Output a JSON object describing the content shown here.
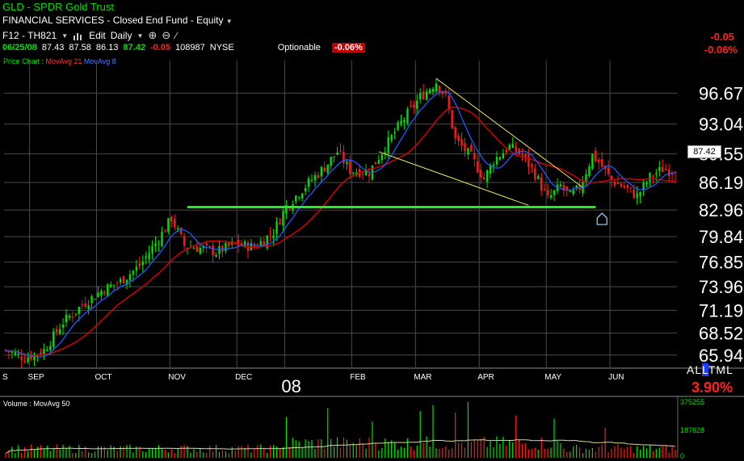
{
  "header": {
    "title": "GLD - SPDR Gold Trust",
    "category": "FINANCIAL SERVICES - Closed End Fund - Equity",
    "symbol_code": "F12 - TH821",
    "edit_label": "Edit",
    "period_label": "Daily",
    "date": "06/25/08",
    "open": "87.43",
    "high": "87.58",
    "low": "86.13",
    "close": "87.42",
    "change": "-0.05",
    "volume": "108987",
    "exchange": "NYSE",
    "optionable": "Optionable",
    "change_pct": "-0.06%",
    "right_change": "-0.05",
    "right_change_pct": "-0.06%"
  },
  "legend": {
    "price_chart": "Price Chart :",
    "ma21": "MovAvg 21",
    "ma8": "MovAvg 8"
  },
  "side": {
    "last_price_box": "87.42",
    "al": "AL",
    "l": "L",
    "tml": "TML",
    "pct": "3.90%"
  },
  "volume_panel": {
    "title": "Volume : MovAvg 50",
    "tick_top": "375255",
    "tick_mid": "187628",
    "tick_zero": "0"
  },
  "colors": {
    "up": "#00e000",
    "down": "#ff1a1a",
    "ma21": "#d00000",
    "ma8": "#1a5cff",
    "support": "#22ee22",
    "trend": "#e8e860",
    "grid": "#4a4a4a",
    "vol_ma": "#d8d8a0"
  },
  "chart_data": {
    "type": "line",
    "title": "GLD - SPDR Gold Trust",
    "ylim": [
      64.5,
      100.5
    ],
    "y_ticks": [
      "96.67",
      "93.04",
      "89.55",
      "86.19",
      "82.96",
      "79.84",
      "76.85",
      "73.96",
      "71.19",
      "68.52",
      "65.94"
    ],
    "y_tick_values": [
      96.67,
      93.04,
      89.55,
      86.19,
      82.96,
      79.84,
      76.85,
      73.96,
      71.19,
      68.52,
      65.94
    ],
    "x_labels": [
      {
        "label": "S",
        "day": 0
      },
      {
        "label": "SEP",
        "day": 8
      },
      {
        "label": "OCT",
        "day": 29
      },
      {
        "label": "NOV",
        "day": 52
      },
      {
        "label": "DEC",
        "day": 73
      },
      {
        "label": "08",
        "day": 88
      },
      {
        "label": "FEB",
        "day": 109
      },
      {
        "label": "MAR",
        "day": 129
      },
      {
        "label": "APR",
        "day": 149
      },
      {
        "label": "MAY",
        "day": 170
      },
      {
        "label": "JUN",
        "day": 190
      }
    ],
    "num_days": 211,
    "key_points": [
      [
        0,
        66.5
      ],
      [
        6,
        65.6
      ],
      [
        12,
        66.5
      ],
      [
        18,
        69.8
      ],
      [
        24,
        71.8
      ],
      [
        30,
        73.5
      ],
      [
        36,
        74.6
      ],
      [
        42,
        76.4
      ],
      [
        48,
        79.6
      ],
      [
        52,
        82.0
      ],
      [
        56,
        78.8
      ],
      [
        62,
        78.4
      ],
      [
        66,
        78.0
      ],
      [
        72,
        79.0
      ],
      [
        78,
        78.6
      ],
      [
        84,
        80.4
      ],
      [
        88,
        83.4
      ],
      [
        94,
        85.8
      ],
      [
        100,
        88.0
      ],
      [
        104,
        89.8
      ],
      [
        108,
        87.6
      ],
      [
        114,
        87.4
      ],
      [
        118,
        89.8
      ],
      [
        124,
        93.2
      ],
      [
        130,
        96.2
      ],
      [
        135,
        98.0
      ],
      [
        138,
        96.2
      ],
      [
        141,
        91.2
      ],
      [
        146,
        89.2
      ],
      [
        150,
        86.6
      ],
      [
        153,
        88.8
      ],
      [
        158,
        90.4
      ],
      [
        162,
        89.4
      ],
      [
        166,
        87.2
      ],
      [
        170,
        84.2
      ],
      [
        174,
        85.8
      ],
      [
        177,
        84.6
      ],
      [
        180,
        85.6
      ],
      [
        184,
        89.4
      ],
      [
        186,
        88.6
      ],
      [
        190,
        86.4
      ],
      [
        194,
        85.6
      ],
      [
        198,
        84.6
      ],
      [
        202,
        86.8
      ],
      [
        206,
        87.8
      ],
      [
        210,
        87.42
      ]
    ],
    "volume": {
      "ylim": [
        0,
        375255
      ],
      "ticks": [
        375255,
        187628,
        0
      ],
      "base_level": 60000,
      "spikes": [
        [
          88,
          270000
        ],
        [
          101,
          330000
        ],
        [
          115,
          240000
        ],
        [
          130,
          310000
        ],
        [
          134,
          350000
        ],
        [
          141,
          300000
        ],
        [
          145,
          370000
        ],
        [
          160,
          280000
        ],
        [
          172,
          260000
        ],
        [
          188,
          200000
        ]
      ]
    },
    "support_line": {
      "x": [
        57,
        185
      ],
      "y": [
        83.3,
        83.3
      ]
    },
    "trendlines": [
      {
        "x": [
          135,
          181
        ],
        "y": [
          98.4,
          85.6
        ]
      },
      {
        "x": [
          117,
          164
        ],
        "y": [
          89.8,
          83.5
        ]
      }
    ],
    "moving_averages": [
      "MovAvg 21",
      "MovAvg 8"
    ]
  }
}
